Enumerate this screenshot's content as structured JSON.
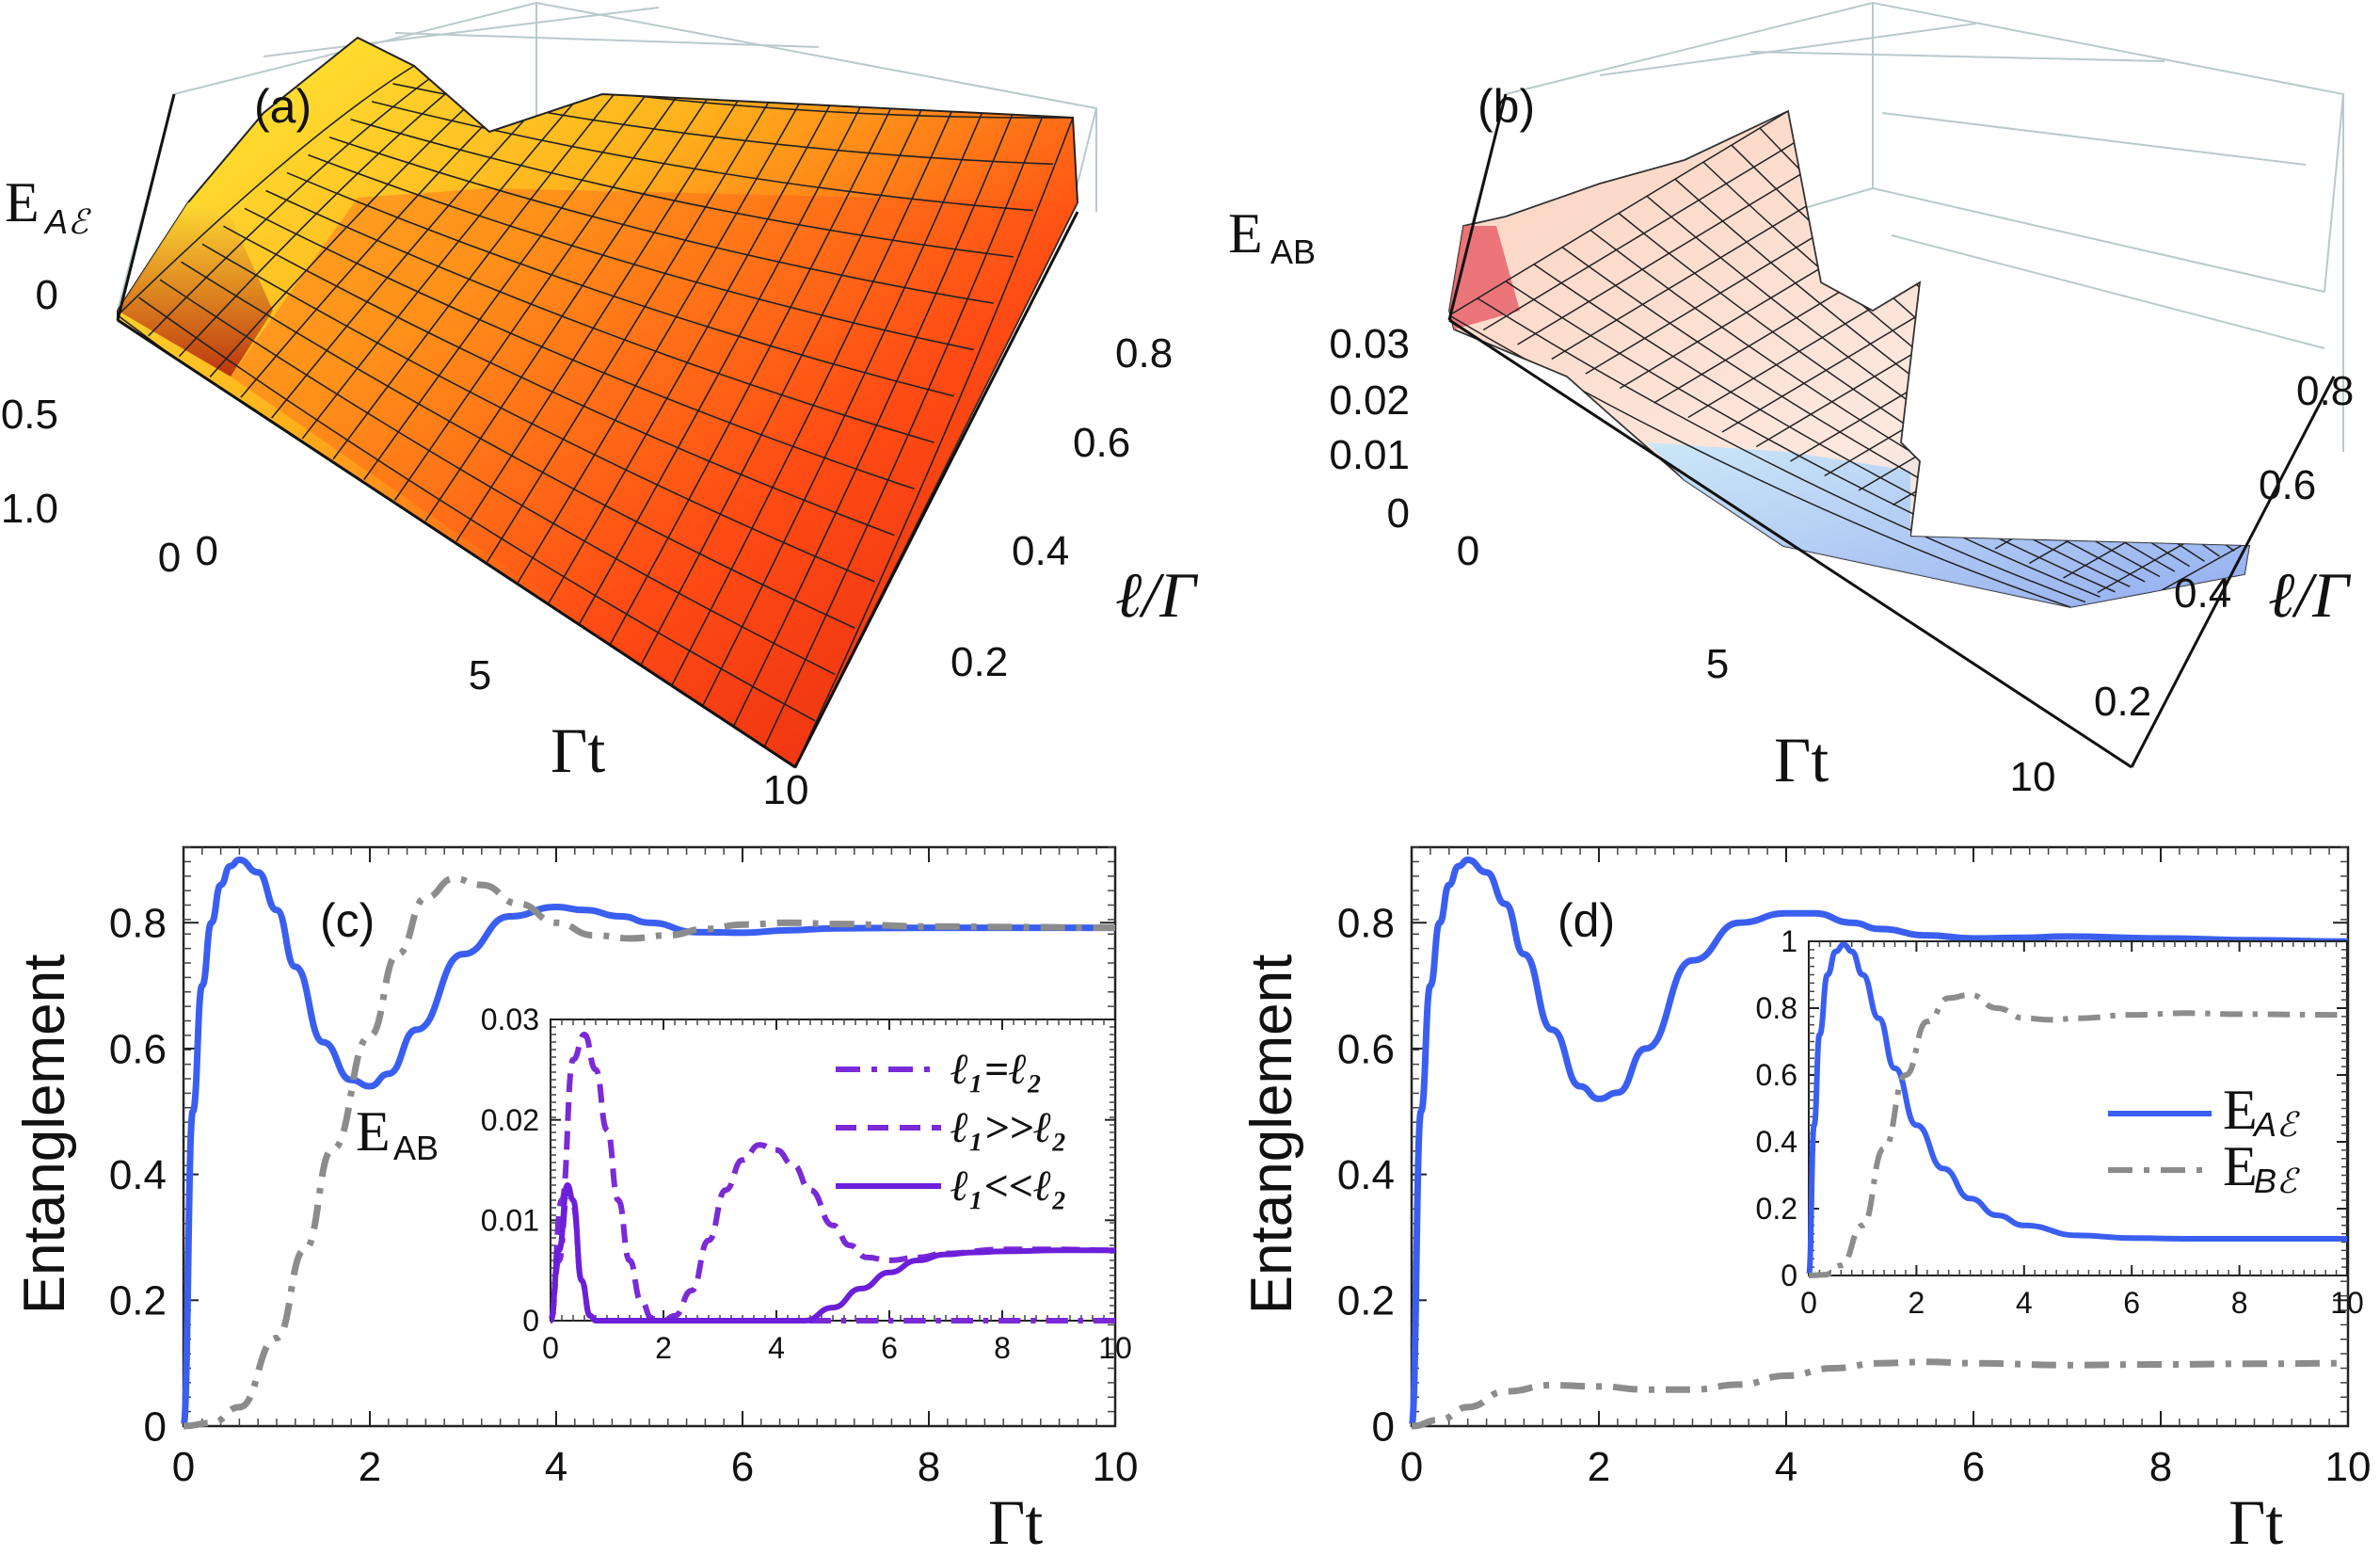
{
  "figure": {
    "panels": {
      "a": {
        "label": "(a)",
        "zlabel": "E",
        "zlabel_sub": "Aℰ",
        "xlabel": "Γt",
        "ylabel": "ℓ/Γ",
        "zticks": [
          "0",
          "0.5",
          "1.0"
        ],
        "xticks": [
          "0",
          "5",
          "10"
        ],
        "yticks": [
          "0.2",
          "0.4",
          "0.6",
          "0.8"
        ]
      },
      "b": {
        "label": "(b)",
        "zlabel": "E",
        "zlabel_sub": "AB",
        "xlabel": "Γt",
        "ylabel": "ℓ/Γ",
        "zticks": [
          "0",
          "0.01",
          "0.02",
          "0.03"
        ],
        "xticks": [
          "0",
          "5",
          "10"
        ],
        "yticks": [
          "0.2",
          "0.4",
          "0.6",
          "0.8"
        ]
      },
      "c": {
        "label": "(c)",
        "ylabel": "Entanglement",
        "xlabel": "Γt",
        "annotation": "E",
        "annotation_sub": "AB",
        "legend": [
          "ℓ₁=ℓ₂",
          "ℓ₁>>ℓ₂",
          "ℓ₁<<ℓ₂"
        ]
      },
      "d": {
        "label": "(d)",
        "ylabel": "Entanglement",
        "xlabel": "Γt",
        "legend": [
          {
            "main": "E",
            "sub": "Aℰ"
          },
          {
            "main": "E",
            "sub": "Bℰ"
          }
        ]
      }
    },
    "colors": {
      "blue": "#3a5ff0",
      "gray": "#8c8c8c",
      "purple": "#7a2ad6",
      "purple_solid": "#6c1fd9"
    }
  },
  "chart_data": [
    {
      "id": "a",
      "type": "surface",
      "title": "(a)",
      "xlabel": "Γt",
      "ylabel": "ℓ/Γ",
      "zlabel": "E_Aℰ",
      "x_range": [
        0,
        10
      ],
      "y_range": [
        0.1,
        0.85
      ],
      "z_range": [
        0,
        1.0
      ],
      "description_values": {
        "peak_value": 1.0,
        "peak_at_gamma_t": 0.6,
        "long_time_value": 0.8
      }
    },
    {
      "id": "b",
      "type": "surface",
      "title": "(b)",
      "xlabel": "Γt",
      "ylabel": "ℓ/Γ",
      "zlabel": "E_AB",
      "x_range": [
        0,
        10
      ],
      "y_range": [
        0.1,
        0.85
      ],
      "z_range": [
        0,
        0.035
      ],
      "description_values": {
        "peak_value": 0.03,
        "peak_at_gamma_t": 0.5
      }
    },
    {
      "id": "c",
      "type": "line",
      "title": "(c)",
      "xlabel": "Γt",
      "ylabel": "Entanglement",
      "xlim": [
        0,
        10
      ],
      "ylim": [
        0,
        0.92
      ],
      "xticks": [
        0,
        2,
        4,
        6,
        8,
        10
      ],
      "yticks": [
        0,
        0.2,
        0.4,
        0.6,
        0.8
      ],
      "series": [
        {
          "name": "blue-solid",
          "style": "solid",
          "color": "#3a5ff0",
          "x": [
            0,
            0.1,
            0.2,
            0.3,
            0.4,
            0.5,
            0.6,
            0.8,
            1.0,
            1.2,
            1.5,
            1.8,
            2.0,
            2.2,
            2.5,
            3.0,
            3.5,
            4.0,
            4.3,
            4.7,
            5.0,
            5.5,
            6.0,
            6.5,
            7.0,
            8.0,
            9.0,
            10.0
          ],
          "y": [
            0,
            0.5,
            0.7,
            0.8,
            0.86,
            0.89,
            0.9,
            0.88,
            0.82,
            0.73,
            0.61,
            0.55,
            0.54,
            0.56,
            0.63,
            0.75,
            0.81,
            0.825,
            0.82,
            0.81,
            0.8,
            0.785,
            0.784,
            0.788,
            0.791,
            0.792,
            0.792,
            0.792
          ]
        },
        {
          "name": "gray-dash-dot",
          "style": "dashdot",
          "color": "#8c8c8c",
          "x": [
            0,
            0.3,
            0.6,
            1.0,
            1.3,
            1.6,
            2.0,
            2.3,
            2.6,
            2.9,
            3.2,
            3.6,
            4.0,
            4.4,
            4.8,
            5.2,
            5.6,
            6.0,
            6.5,
            7.0,
            8.0,
            9.0,
            10.0
          ],
          "y": [
            0,
            0.005,
            0.03,
            0.14,
            0.28,
            0.44,
            0.62,
            0.75,
            0.84,
            0.87,
            0.86,
            0.83,
            0.8,
            0.78,
            0.775,
            0.78,
            0.79,
            0.797,
            0.8,
            0.798,
            0.794,
            0.793,
            0.792
          ]
        }
      ],
      "inset": {
        "xlim": [
          0,
          10
        ],
        "ylim": [
          0,
          0.03
        ],
        "xticks": [
          0,
          2,
          4,
          6,
          8,
          10
        ],
        "yticks": [
          0,
          0.01,
          0.02,
          0.03
        ],
        "series": [
          {
            "name": "ℓ₁=ℓ₂",
            "style": "dashdot",
            "color": "#7a2ad6",
            "x": [
              0,
              0.15,
              0.3,
              0.4,
              0.55,
              0.7,
              0.8,
              10.0
            ],
            "y": [
              0,
              0.006,
              0.0125,
              0.0115,
              0.004,
              0.0005,
              0,
              0
            ]
          },
          {
            "name": "ℓ₁>>ℓ₂",
            "style": "dashed",
            "color": "#7a2ad6",
            "x": [
              0,
              0.2,
              0.4,
              0.6,
              0.8,
              1.0,
              1.2,
              1.4,
              1.6,
              1.8,
              2.0,
              2.2,
              2.5,
              2.8,
              3.1,
              3.4,
              3.7,
              4.0,
              4.3,
              4.6,
              5.0,
              5.3,
              5.6,
              6.0,
              6.5,
              7.0,
              8.0,
              9.0,
              10.0
            ],
            "y": [
              0,
              0.012,
              0.026,
              0.0285,
              0.025,
              0.019,
              0.012,
              0.006,
              0.002,
              0.0002,
              0,
              0.0005,
              0.003,
              0.008,
              0.013,
              0.016,
              0.0175,
              0.017,
              0.0155,
              0.013,
              0.0095,
              0.0075,
              0.0063,
              0.006,
              0.0063,
              0.0067,
              0.0071,
              0.0071,
              0.007
            ]
          },
          {
            "name": "ℓ₁<<ℓ₂",
            "style": "solid",
            "color": "#6c1fd9",
            "x": [
              0,
              0.15,
              0.3,
              0.4,
              0.55,
              0.7,
              0.8,
              4.5,
              5.0,
              5.5,
              6.0,
              6.5,
              7.0,
              7.5,
              8.0,
              9.0,
              10.0
            ],
            "y": [
              0,
              0.007,
              0.0135,
              0.012,
              0.004,
              0.0005,
              0,
              0,
              0.0013,
              0.0032,
              0.0048,
              0.006,
              0.0066,
              0.0068,
              0.0069,
              0.007,
              0.007
            ]
          }
        ]
      }
    },
    {
      "id": "d",
      "type": "line",
      "title": "(d)",
      "xlabel": "Γt",
      "ylabel": "Entanglement",
      "xlim": [
        0,
        10
      ],
      "ylim": [
        0,
        0.92
      ],
      "xticks": [
        0,
        2,
        4,
        6,
        8,
        10
      ],
      "yticks": [
        0,
        0.2,
        0.4,
        0.6,
        0.8
      ],
      "series": [
        {
          "name": "blue-solid",
          "style": "solid",
          "color": "#3a5ff0",
          "x": [
            0,
            0.1,
            0.2,
            0.3,
            0.4,
            0.5,
            0.6,
            0.8,
            1.0,
            1.2,
            1.5,
            1.8,
            2.0,
            2.2,
            2.5,
            3.0,
            3.5,
            4.0,
            4.3,
            4.7,
            5.0,
            5.5,
            6.0,
            6.5,
            7.0,
            8.0,
            9.0,
            10.0
          ],
          "y": [
            0,
            0.5,
            0.7,
            0.8,
            0.86,
            0.89,
            0.9,
            0.88,
            0.83,
            0.75,
            0.63,
            0.54,
            0.52,
            0.53,
            0.6,
            0.74,
            0.8,
            0.815,
            0.815,
            0.8,
            0.79,
            0.78,
            0.775,
            0.776,
            0.778,
            0.775,
            0.772,
            0.77
          ]
        },
        {
          "name": "gray-dash-dot",
          "style": "dashdot",
          "color": "#8c8c8c",
          "x": [
            0,
            0.3,
            0.6,
            1.0,
            1.5,
            2.0,
            2.5,
            3.0,
            3.5,
            4.0,
            4.5,
            5.0,
            5.5,
            6.0,
            7.0,
            8.0,
            9.0,
            10.0
          ],
          "y": [
            0,
            0.01,
            0.03,
            0.055,
            0.065,
            0.063,
            0.058,
            0.058,
            0.066,
            0.08,
            0.092,
            0.1,
            0.102,
            0.1,
            0.097,
            0.098,
            0.099,
            0.1
          ]
        }
      ],
      "inset": {
        "xlim": [
          0,
          10
        ],
        "ylim": [
          0,
          1.0
        ],
        "xticks": [
          0,
          2,
          4,
          6,
          8,
          10
        ],
        "yticks": [
          0,
          0.2,
          0.4,
          0.6,
          0.8,
          1.0
        ],
        "series": [
          {
            "name": "E_Aℰ",
            "style": "solid",
            "color": "#3a5ff0",
            "x": [
              0,
              0.1,
              0.2,
              0.35,
              0.5,
              0.65,
              0.8,
              1.0,
              1.3,
              1.6,
              2.0,
              2.5,
              3.0,
              3.5,
              4.0,
              5.0,
              6.0,
              7.0,
              8.0,
              10.0
            ],
            "y": [
              0,
              0.45,
              0.72,
              0.9,
              0.97,
              0.99,
              0.97,
              0.9,
              0.77,
              0.62,
              0.45,
              0.32,
              0.23,
              0.18,
              0.15,
              0.12,
              0.112,
              0.11,
              0.11,
              0.11
            ]
          },
          {
            "name": "E_Bℰ",
            "style": "dashdot",
            "color": "#8c8c8c",
            "x": [
              0,
              0.3,
              0.6,
              1.0,
              1.4,
              1.8,
              2.2,
              2.6,
              3.0,
              3.5,
              4.0,
              4.5,
              5.0,
              6.0,
              7.0,
              8.0,
              10.0
            ],
            "y": [
              0,
              0.002,
              0.03,
              0.15,
              0.38,
              0.6,
              0.76,
              0.83,
              0.84,
              0.8,
              0.77,
              0.765,
              0.77,
              0.78,
              0.785,
              0.782,
              0.78
            ]
          }
        ]
      }
    }
  ]
}
